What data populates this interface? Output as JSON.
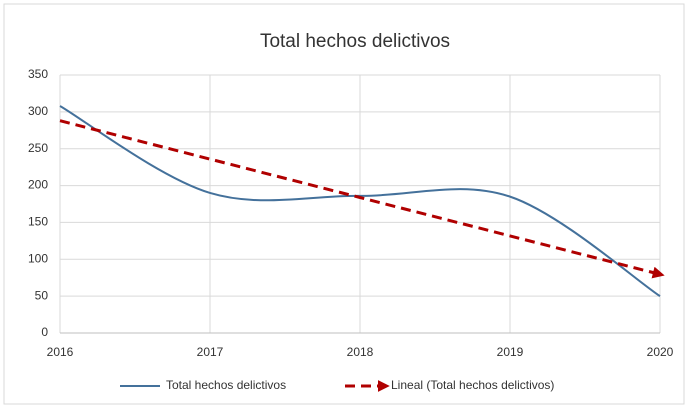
{
  "chart_data": {
    "type": "line",
    "title": "Total hechos delictivos",
    "x": [
      2016,
      2017,
      2018,
      2019,
      2020
    ],
    "series": [
      {
        "name": "Total hechos delictivos",
        "color": "#44719b",
        "values": [
          308,
          190,
          186,
          185,
          50
        ],
        "smooth": true
      },
      {
        "name": "Lineal (Total hechos delictivos)",
        "color": "#b00000",
        "values": [
          288,
          235.9,
          183.8,
          131.7,
          79.6
        ],
        "dashed": true
      }
    ],
    "xlim": [
      2016,
      2020
    ],
    "xticks": [
      2016,
      2017,
      2018,
      2019,
      2020
    ],
    "ylim": [
      0,
      350
    ],
    "yticks": [
      0,
      50,
      100,
      150,
      200,
      250,
      300,
      350
    ],
    "grid": true,
    "legend": "bottom"
  }
}
